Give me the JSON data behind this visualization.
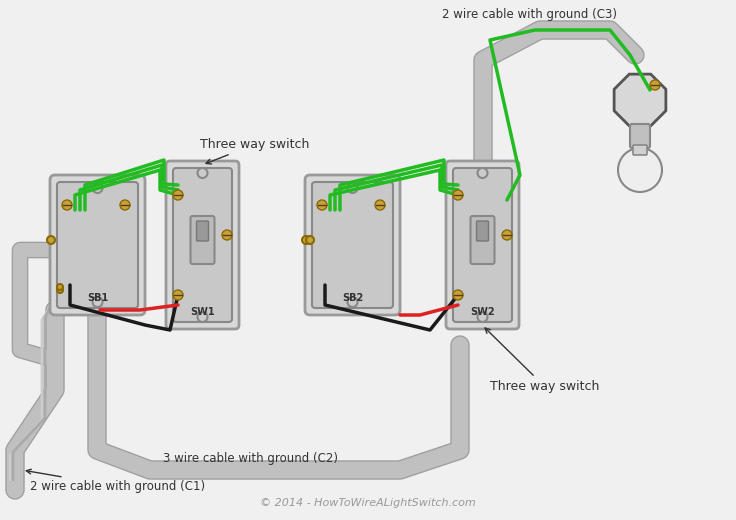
{
  "title": "Three Way Switch Wiring Diagram",
  "bg_color": "#f0f0f0",
  "wire_colors": {
    "black": "#1a1a1a",
    "green": "#22bb22",
    "red": "#dd2222",
    "white": "#cccccc",
    "gray": "#aaaaaa",
    "gold": "#c8a040"
  },
  "labels": {
    "sb1": "SB1",
    "sw1": "SW1",
    "sb2": "SB2",
    "sw2": "SW2",
    "three_way_1": "Three way switch",
    "three_way_2": "Three way switch",
    "c1": "2 wire cable with ground (C1)",
    "c2": "3 wire cable with ground (C2)",
    "c3": "2 wire cable with ground (C3)",
    "copyright": "© 2014 - HowToWireALightSwitch.com"
  },
  "text_color": "#333333",
  "copyright_color": "#999999"
}
